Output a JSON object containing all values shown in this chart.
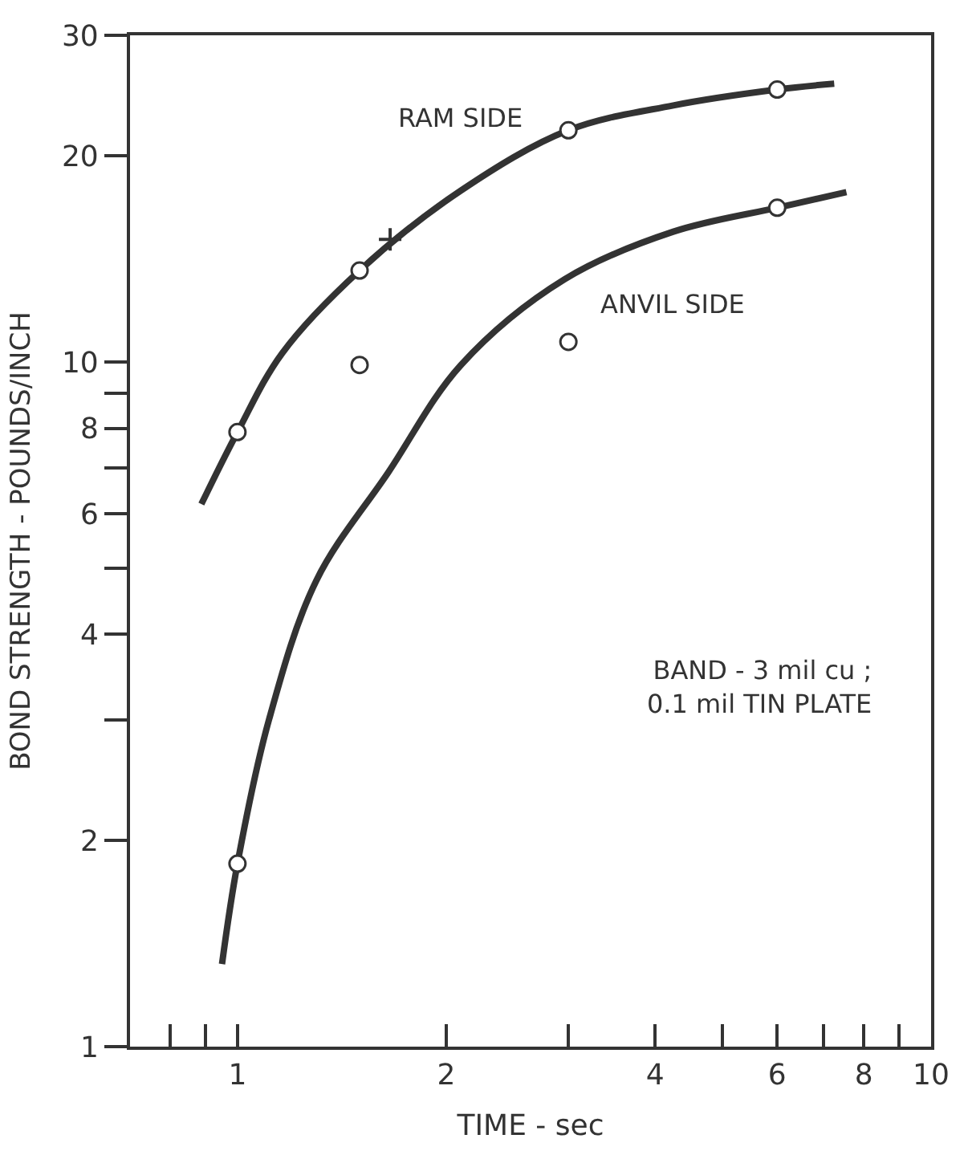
{
  "chart_data": {
    "type": "scatter",
    "xlabel": "TIME - sec",
    "ylabel": "BOND STRENGTH - POUNDS/INCH",
    "log": "xy",
    "legend": false,
    "xlim": [
      0.7,
      10
    ],
    "xticks": [
      {
        "value": 0.8,
        "label": null
      },
      {
        "value": 0.9,
        "label": null
      },
      1,
      2,
      {
        "value": 3,
        "label": null
      },
      4,
      {
        "value": 5,
        "label": null
      },
      6,
      {
        "value": 7,
        "label": null
      },
      8,
      {
        "value": 9,
        "label": null
      },
      10
    ],
    "ylim": [
      1,
      30
    ],
    "yticks": [
      1,
      2,
      {
        "value": 3,
        "label": null
      },
      4,
      {
        "value": 5,
        "label": null
      },
      6,
      {
        "value": 7,
        "label": null
      },
      8,
      {
        "value": 9,
        "label": null
      },
      10,
      20,
      30
    ],
    "series": [
      {
        "type": "line",
        "name": "RAM SIDE",
        "color": "#333333",
        "marker": "none",
        "x": [
          0.887,
          1,
          1.16,
          1.5,
          2.1,
          3,
          4.25,
          6,
          7.25
        ],
        "values": [
          6.2,
          7.9,
          10.3,
          13.6,
          17.8,
          21.8,
          23.7,
          25,
          25.5
        ]
      },
      {
        "type": "line",
        "name": "ANVIL SIDE",
        "color": "#333333",
        "marker": "none",
        "x": [
          0.95,
          1,
          1.11,
          1.3,
          1.65,
          2.1,
          2.96,
          4.25,
          6,
          7.55
        ],
        "values": [
          1.32,
          1.85,
          3.0,
          4.8,
          6.9,
          9.9,
          13.2,
          15.5,
          16.8,
          17.7
        ]
      },
      {
        "color": "#333333",
        "marker": "circle",
        "x": [
          1,
          1.5,
          3,
          6
        ],
        "values": [
          7.9,
          13.6,
          21.8,
          25.0
        ]
      },
      {
        "color": "#333333",
        "marker": "circle",
        "x": [
          1,
          1.5,
          3,
          6
        ],
        "values": [
          1.85,
          9.9,
          10.7,
          16.8
        ]
      },
      {
        "color": "#333333",
        "marker": "cross",
        "x": [
          1.66
        ],
        "values": [
          15.1
        ]
      }
    ],
    "annotations": [
      "BAND - 3 mil cu ;\n0.1 mil TIN PLATE"
    ]
  }
}
